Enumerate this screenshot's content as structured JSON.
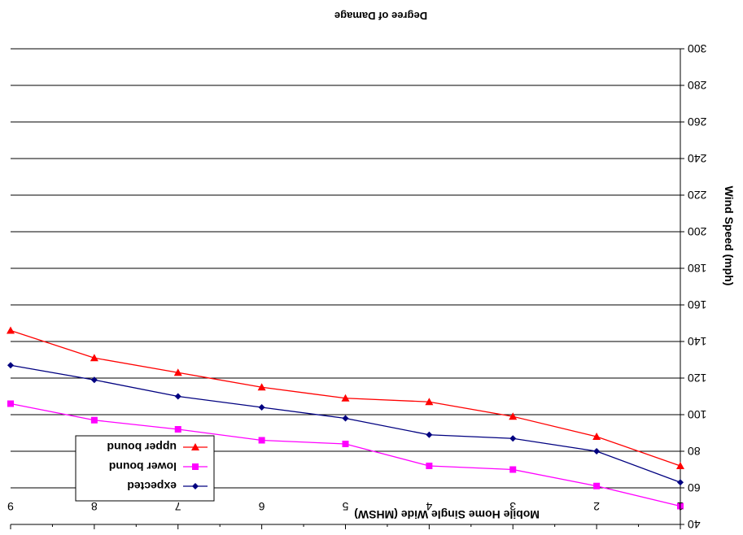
{
  "chart_data": {
    "type": "line",
    "title": "Mobile Home Single Wide (MHSW)",
    "xlabel": "Degree of Damage",
    "ylabel": "Wind Speed (mph)",
    "categories": [
      1,
      2,
      3,
      4,
      5,
      6,
      7,
      8,
      9
    ],
    "x_ticks": [
      "1",
      "2",
      "3",
      "4",
      "5",
      "6",
      "7",
      "8",
      "9"
    ],
    "y_ticks": [
      "40",
      "60",
      "80",
      "100",
      "120",
      "140",
      "160",
      "180",
      "200",
      "220",
      "240",
      "260",
      "280",
      "300"
    ],
    "ylim": [
      40,
      300
    ],
    "y_inverted": true,
    "grid": true,
    "legend_position": "bottom-left",
    "series": [
      {
        "name": "expected",
        "color": "#000080",
        "marker": "diamond",
        "values": [
          63,
          80,
          87,
          89,
          98,
          104,
          110,
          119,
          127
        ]
      },
      {
        "name": "lower bound",
        "color": "#FF00FF",
        "marker": "square",
        "values": [
          50,
          61,
          70,
          72,
          84,
          86,
          92,
          97,
          106
        ]
      },
      {
        "name": "upper bound",
        "color": "#FF0000",
        "marker": "triangle-down",
        "values": [
          72,
          88,
          99,
          107,
          109,
          115,
          123,
          131,
          146
        ]
      }
    ]
  }
}
